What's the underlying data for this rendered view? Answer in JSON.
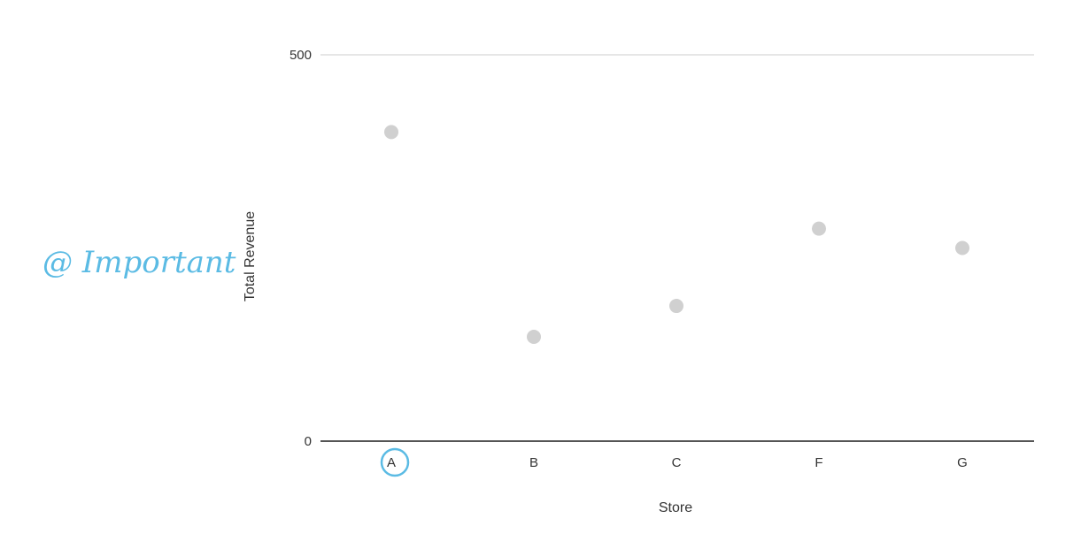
{
  "chart_data": {
    "type": "scatter",
    "title": "",
    "xlabel": "Store",
    "ylabel": "Total Revenue",
    "categories": [
      "A",
      "B",
      "C",
      "F",
      "G"
    ],
    "values": [
      400,
      135,
      175,
      275,
      250
    ],
    "ylim": [
      0,
      500
    ],
    "yticks": [
      0,
      500
    ],
    "grid": false,
    "legend": "none",
    "point_color": "#d0d0d0"
  },
  "annotation": {
    "text": "@ Important",
    "circled_category": "A",
    "color": "#5bbbe4"
  }
}
